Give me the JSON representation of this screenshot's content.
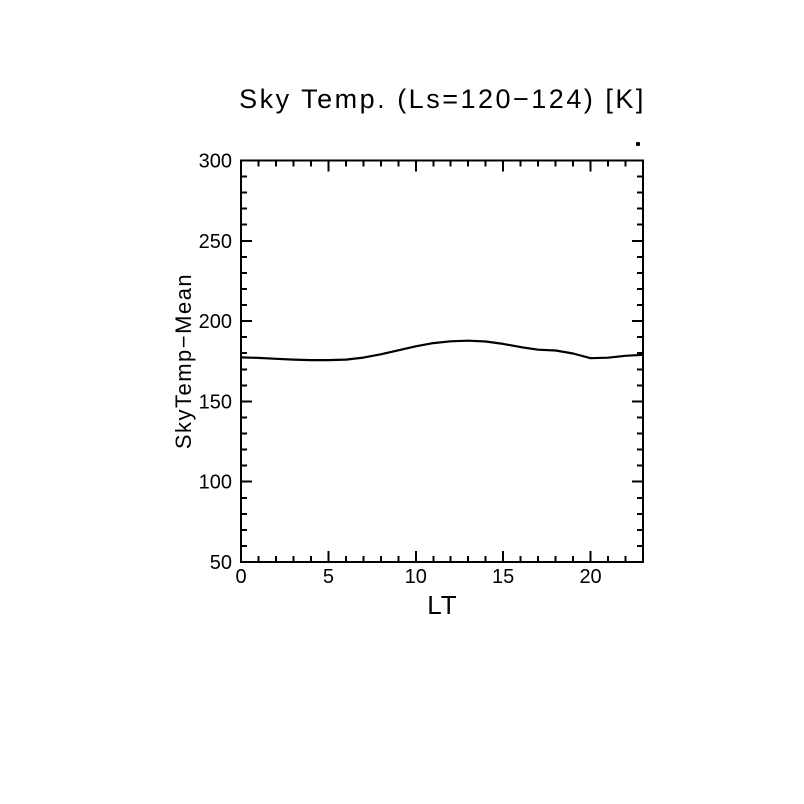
{
  "chart_data": {
    "type": "line",
    "title": "Sky Temp. (Ls=120−124) [K]",
    "xlabel": "LT",
    "ylabel": "SkyTemp−Mean",
    "x": [
      0,
      1,
      2,
      3,
      4,
      5,
      6,
      7,
      8,
      9,
      10,
      11,
      12,
      13,
      14,
      15,
      16,
      17,
      18,
      19,
      20,
      21,
      22,
      23
    ],
    "values": [
      177.4,
      177.1,
      176.5,
      176.0,
      175.7,
      175.7,
      176.0,
      177.3,
      179.3,
      181.8,
      184.3,
      186.3,
      187.4,
      187.8,
      187.3,
      185.8,
      183.8,
      182.2,
      181.7,
      179.8,
      176.9,
      177.2,
      178.4,
      179.0
    ],
    "xlim": [
      0,
      23
    ],
    "ylim": [
      50,
      300
    ],
    "xticks": [
      0,
      5,
      10,
      15,
      20
    ],
    "yticks": [
      50,
      100,
      150,
      200,
      250,
      300
    ],
    "x_minor_step": 1,
    "y_minor_step": 10,
    "grid": false,
    "legend": "none",
    "line_color": "#000000",
    "axis_color": "#000000",
    "background_color": "#ffffff"
  }
}
